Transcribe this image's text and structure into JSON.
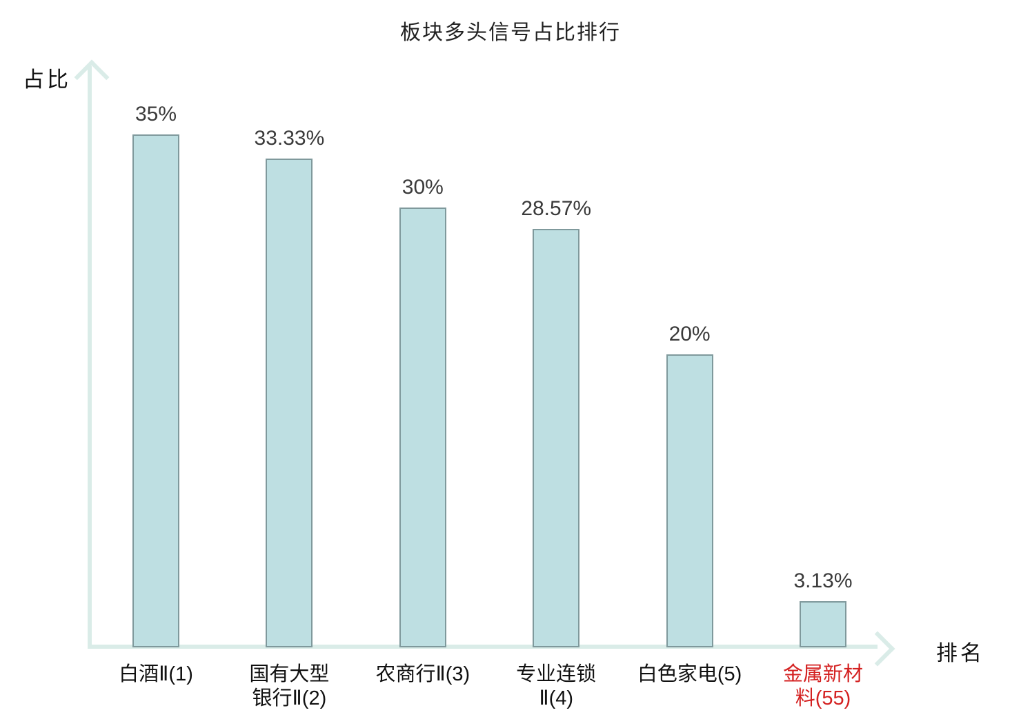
{
  "chart_data": {
    "type": "bar",
    "title": "板块多头信号占比排行",
    "ylabel": "占比",
    "xlabel": "排名",
    "categories": [
      "白酒Ⅱ(1)",
      "国有大型银行Ⅱ(2)",
      "农商行Ⅱ(3)",
      "专业连锁Ⅱ(4)",
      "白色家电(5)",
      "金属新材料(55)"
    ],
    "category_lines": [
      [
        "白酒Ⅱ(1)"
      ],
      [
        "国有大型",
        "银行Ⅱ(2)"
      ],
      [
        "农商行Ⅱ(3)"
      ],
      [
        "专业连锁",
        "Ⅱ(4)"
      ],
      [
        "白色家电(5)"
      ],
      [
        "金属新材",
        "料(55)"
      ]
    ],
    "values": [
      35,
      33.33,
      30,
      28.57,
      20,
      3.13
    ],
    "value_labels": [
      "35%",
      "33.33%",
      "30%",
      "28.57%",
      "20%",
      "3.13%"
    ],
    "highlighted_category_index": 5,
    "ylim": [
      0,
      40
    ],
    "grid": false,
    "legend": false,
    "colors": {
      "bar_fill": "#bedfe2",
      "bar_border": "#7f999c",
      "axis": "#daece8",
      "value_label": "#3a3a3a",
      "category_label": "#111111",
      "highlight_label": "#d42121",
      "title": "#222222",
      "axis_text": "#111111"
    }
  }
}
